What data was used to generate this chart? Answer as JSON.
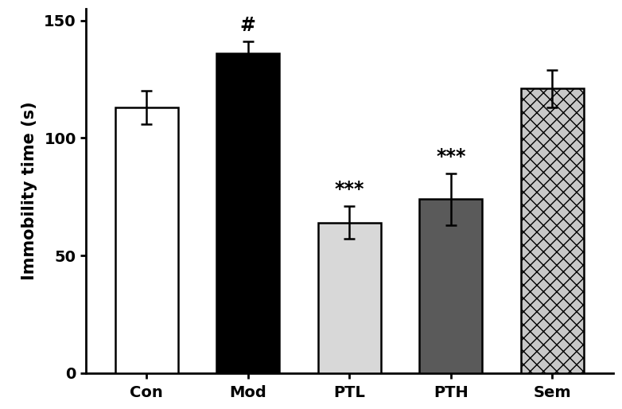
{
  "categories": [
    "Con",
    "Mod",
    "PTL",
    "PTH",
    "Sem"
  ],
  "values": [
    113,
    136,
    64,
    74,
    121
  ],
  "errors": [
    7,
    5,
    7,
    11,
    8
  ],
  "bar_colors": [
    "#ffffff",
    "#000000",
    "#d8d8d8",
    "#5a5a5a",
    "#c8c8c8"
  ],
  "bar_edgecolors": [
    "#000000",
    "#000000",
    "#000000",
    "#000000",
    "#000000"
  ],
  "hatch_patterns": [
    "",
    "",
    "",
    "",
    "xx"
  ],
  "annotations": [
    "",
    "#",
    "***",
    "***",
    ""
  ],
  "ylabel": "Immobility time (s)",
  "ylim": [
    0,
    155
  ],
  "yticks": [
    0,
    50,
    100,
    150
  ],
  "title": "",
  "bar_width": 0.62,
  "annotation_fontsize": 17,
  "label_fontsize": 15,
  "tick_fontsize": 14,
  "capsize": 5,
  "linewidth": 1.8
}
